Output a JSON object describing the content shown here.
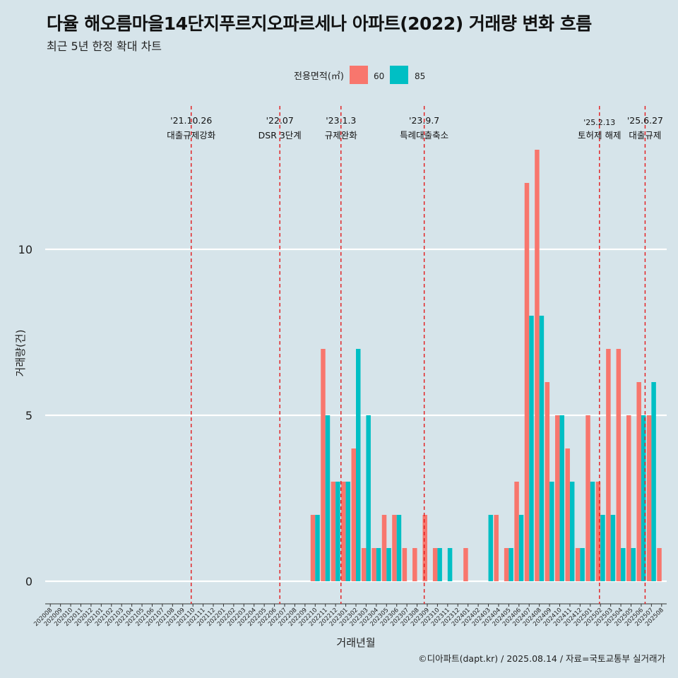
{
  "title": "다율 해오름마을14단지푸르지오파르세나 아파트(2022) 거래량 변화 흐름",
  "subtitle": "최근 5년 한정 확대 차트",
  "caption": "©디아파트(dapt.kr) / 2025.08.14 / 자료=국토교통부 실거래가",
  "colors": {
    "background": "#d6e4ea",
    "series60": "#f8766d",
    "series85": "#00bfc4",
    "event_line": "#e31a1c",
    "grid": "#ffffff"
  },
  "chart_data": {
    "type": "bar",
    "xlabel": "거래년월",
    "ylabel": "거래량(건)",
    "ylim": [
      0,
      13
    ],
    "yticks": [
      0,
      5,
      10
    ],
    "grid": true,
    "legend": {
      "title": "전용면적(㎡)",
      "position": "top",
      "entries": [
        "60",
        "85"
      ]
    },
    "categories": [
      "202008",
      "202009",
      "202010",
      "202011",
      "202012",
      "202101",
      "202102",
      "202103",
      "202104",
      "202105",
      "202106",
      "202107",
      "202108",
      "202109",
      "202110",
      "202111",
      "202112",
      "202201",
      "202202",
      "202203",
      "202204",
      "202205",
      "202206",
      "202207",
      "202208",
      "202209",
      "202210",
      "202211",
      "202212",
      "202301",
      "202302",
      "202303",
      "202304",
      "202305",
      "202306",
      "202307",
      "202308",
      "202309",
      "202310",
      "202311",
      "202312",
      "202401",
      "202402",
      "202403",
      "202404",
      "202405",
      "202406",
      "202407",
      "202408",
      "202409",
      "202410",
      "202411",
      "202412",
      "202501",
      "202502",
      "202503",
      "202504",
      "202505",
      "202506",
      "202507",
      "202508"
    ],
    "series": [
      {
        "name": "60",
        "values": [
          0,
          0,
          0,
          0,
          0,
          0,
          0,
          0,
          0,
          0,
          0,
          0,
          0,
          0,
          0,
          0,
          0,
          0,
          0,
          0,
          0,
          0,
          0,
          0,
          0,
          0,
          2,
          7,
          3,
          3,
          4,
          1,
          1,
          2,
          2,
          1,
          1,
          2,
          1,
          0,
          0,
          1,
          0,
          0,
          2,
          1,
          3,
          12,
          13,
          6,
          5,
          4,
          1,
          5,
          3,
          7,
          7,
          5,
          6,
          5,
          1
        ]
      },
      {
        "name": "85",
        "values": [
          0,
          0,
          0,
          0,
          0,
          0,
          0,
          0,
          0,
          0,
          0,
          0,
          0,
          0,
          0,
          0,
          0,
          0,
          0,
          0,
          0,
          0,
          0,
          0,
          0,
          0,
          2,
          5,
          3,
          3,
          7,
          5,
          1,
          1,
          2,
          0,
          0,
          0,
          1,
          1,
          0,
          0,
          0,
          2,
          0,
          1,
          2,
          8,
          8,
          3,
          5,
          3,
          1,
          3,
          2,
          2,
          1,
          1,
          5,
          6,
          0
        ]
      }
    ],
    "events": [
      {
        "category": "202110",
        "offset": -0.17,
        "date": "'21.10.26",
        "label": "대출규제강화"
      },
      {
        "category": "202207",
        "offset": -0.47,
        "date": "'22.07",
        "label": "DSR 3단계"
      },
      {
        "category": "202301",
        "offset": -0.47,
        "date": "'23.1.3",
        "label": "규제완화"
      },
      {
        "category": "202309",
        "offset": -0.3,
        "date": "'23.9.7",
        "label": "특례대출축소"
      },
      {
        "category": "202502",
        "offset": -0.1,
        "date": "'25.2.13",
        "label": "토허제 해제"
      },
      {
        "category": "202506",
        "offset": 0.38,
        "date": "'25.6.27",
        "label": "대출규제"
      }
    ]
  }
}
